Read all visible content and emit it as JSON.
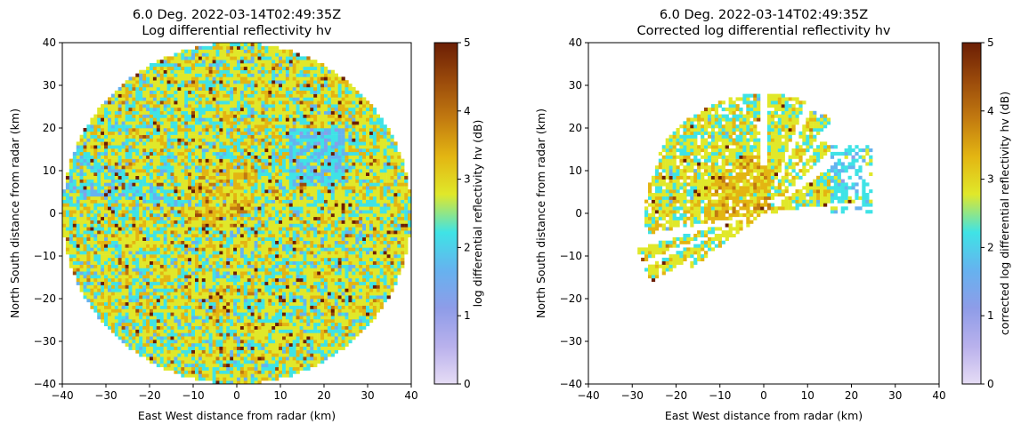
{
  "chart_data": [
    {
      "type": "heatmap",
      "title_line1": "6.0 Deg. 2022-03-14T02:49:35Z",
      "title_line2": "Log differential reflectivity hv",
      "xlabel": "East West distance from radar (km)",
      "ylabel": "North South distance from radar (km)",
      "xlim": [
        -40,
        40
      ],
      "ylim": [
        -40,
        40
      ],
      "xticks": [
        -40,
        -30,
        -20,
        -10,
        0,
        10,
        20,
        30,
        40
      ],
      "yticks": [
        -40,
        -30,
        -20,
        -10,
        0,
        10,
        20,
        30,
        40
      ],
      "colorbar": {
        "label": "log differential reflectivity hv (dB)",
        "range": [
          0,
          5
        ],
        "ticks": [
          0,
          1,
          2,
          3,
          4,
          5
        ]
      },
      "max_range_km": 40,
      "typical_value_dB": 2.7
    },
    {
      "type": "heatmap",
      "title_line1": "6.0 Deg. 2022-03-14T02:49:35Z",
      "title_line2": "Corrected log differential reflectivity hv",
      "xlabel": "East West distance from radar (km)",
      "ylabel": "North South distance from radar (km)",
      "xlim": [
        -40,
        40
      ],
      "ylim": [
        -40,
        40
      ],
      "xticks": [
        -40,
        -30,
        -20,
        -10,
        0,
        10,
        20,
        30,
        40
      ],
      "yticks": [
        -40,
        -30,
        -20,
        -10,
        0,
        10,
        20,
        30,
        40
      ],
      "colorbar": {
        "label": "corrected log differential reflectivity hv (dB)",
        "range": [
          0,
          5
        ],
        "ticks": [
          0,
          1,
          2,
          3,
          4,
          5
        ]
      },
      "typical_value_dB": 2.7
    }
  ],
  "colormap": [
    "#e6dcf5",
    "#b9b1ec",
    "#8e9ce8",
    "#66b2ef",
    "#3fe3e6",
    "#e0e82a",
    "#e3b512",
    "#c27a10",
    "#9a4a0b",
    "#6b1e05"
  ]
}
